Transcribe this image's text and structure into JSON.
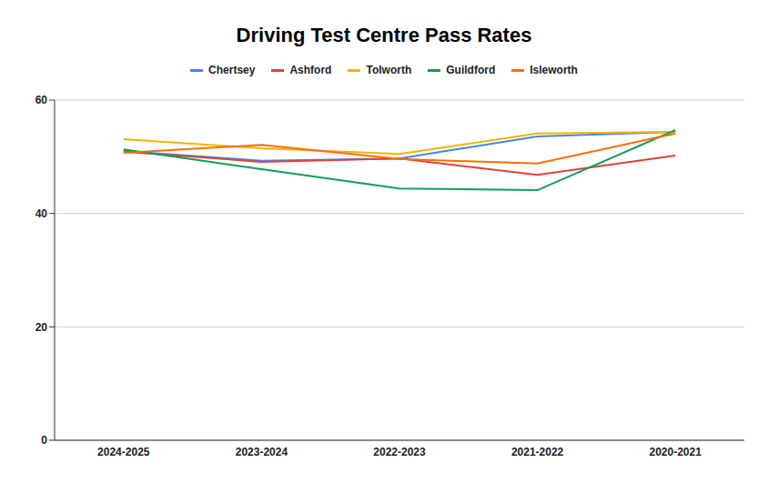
{
  "chart_data": {
    "type": "line",
    "title": "Driving Test Centre Pass Rates",
    "categories": [
      "2024-2025",
      "2023-2024",
      "2022-2023",
      "2021-2022",
      "2020-2021"
    ],
    "series": [
      {
        "name": "Chertsey",
        "color": "#4285f4",
        "values": [
          51.0,
          49.3,
          49.7,
          53.6,
          54.4
        ]
      },
      {
        "name": "Ashford",
        "color": "#db4437",
        "values": [
          50.9,
          49.1,
          49.7,
          46.8,
          50.2
        ]
      },
      {
        "name": "Tolworth",
        "color": "#f4b400",
        "values": [
          53.1,
          51.5,
          50.5,
          54.1,
          54.4
        ]
      },
      {
        "name": "Guildford",
        "color": "#0f9d58",
        "values": [
          51.3,
          47.8,
          44.4,
          44.1,
          54.7
        ]
      },
      {
        "name": "Isleworth",
        "color": "#ff6d01",
        "values": [
          50.7,
          52.1,
          49.6,
          48.8,
          54.1
        ]
      }
    ],
    "ylim": [
      0,
      60
    ],
    "yticks": [
      0,
      20,
      40,
      60
    ],
    "grid": true,
    "legend": "top"
  }
}
